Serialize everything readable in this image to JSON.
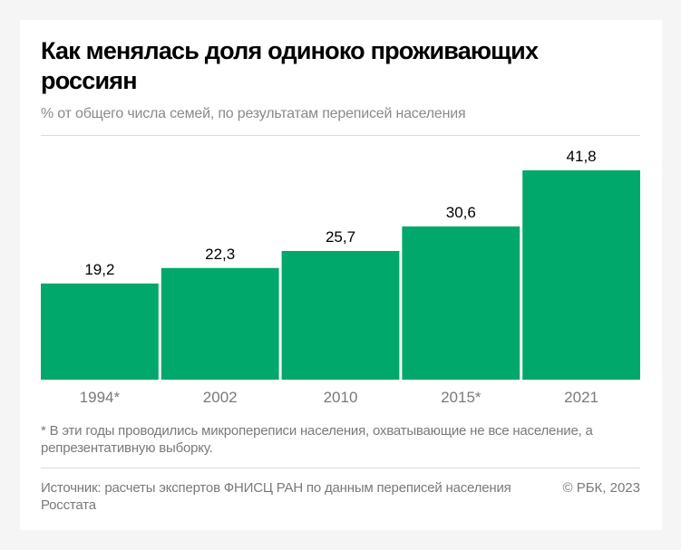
{
  "title": "Как менялась доля одиноко проживающих россиян",
  "subtitle": "% от общего числа семей, по результатам переписей населения",
  "footnote": "* В эти годы проводились микропереписи населения, охватывающие не все население, а репрезентативную выборку.",
  "source": "Источник: расчеты экспертов ФНИСЦ РАН по данным переписей населения Росстата",
  "copyright": "© РБК, 2023",
  "chart_data": {
    "type": "bar",
    "categories": [
      "1994*",
      "2002",
      "2010",
      "2015*",
      "2021"
    ],
    "values": [
      19.2,
      22.3,
      25.7,
      30.6,
      41.8
    ],
    "value_labels": [
      "19,2",
      "22,3",
      "25,7",
      "30,6",
      "41,8"
    ],
    "title": "Как менялась доля одиноко проживающих россиян",
    "xlabel": "",
    "ylabel": "",
    "ylim": [
      0,
      41.8
    ],
    "grid": false,
    "bar_color": "#00a86b"
  }
}
